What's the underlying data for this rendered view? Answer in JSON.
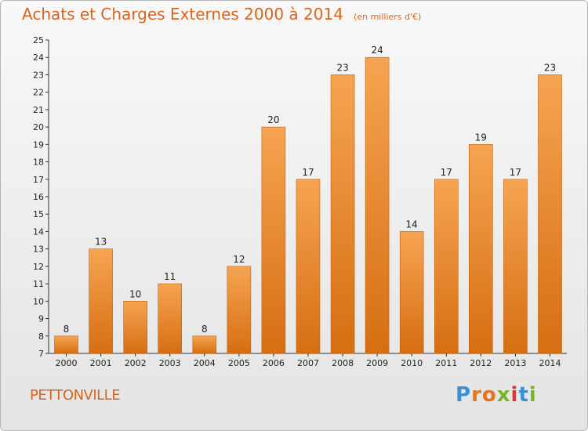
{
  "chart_data": {
    "type": "bar",
    "title": "Achats et Charges Externes 2000 à 2014",
    "subtitle": "(en milliers d'€)",
    "categories": [
      "2000",
      "2001",
      "2002",
      "2003",
      "2004",
      "2005",
      "2006",
      "2007",
      "2008",
      "2009",
      "2010",
      "2011",
      "2012",
      "2013",
      "2014"
    ],
    "values": [
      8,
      13,
      10,
      11,
      8,
      12,
      20,
      17,
      23,
      24,
      14,
      17,
      19,
      17,
      23
    ],
    "ylim": [
      7,
      25
    ],
    "yticks": [
      7,
      8,
      9,
      10,
      11,
      12,
      13,
      14,
      15,
      16,
      17,
      18,
      19,
      20,
      21,
      22,
      23,
      24,
      25
    ],
    "xlabel": "",
    "ylabel": "",
    "grid": false,
    "bar_color": "#f08a2a"
  },
  "footer": {
    "city": "PETTONVILLE",
    "brand": "Proxiti"
  }
}
